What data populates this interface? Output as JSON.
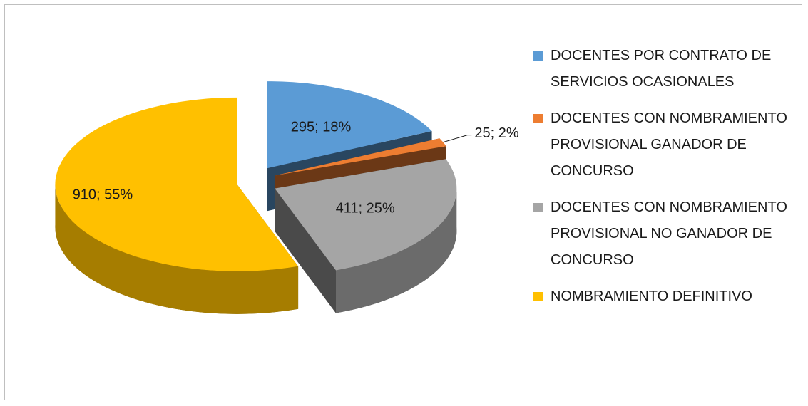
{
  "chart_data": {
    "type": "pie",
    "categories": [
      "DOCENTES POR CONTRATO DE SERVICIOS OCASIONALES",
      "DOCENTES CON NOMBRAMIENTO PROVISIONAL GANADOR DE CONCURSO",
      "DOCENTES CON NOMBRAMIENTO PROVISIONAL NO GANADOR DE CONCURSO",
      "NOMBRAMIENTO DEFINITIVO"
    ],
    "values": [
      295,
      25,
      411,
      910
    ],
    "value_labels": [
      "295; 18%",
      "25; 2%",
      "411; 25%",
      "910; 55%"
    ],
    "colors": [
      "#5b9bd5",
      "#ed7d31",
      "#a5a5a5",
      "#ffc000"
    ],
    "legend": "right"
  }
}
